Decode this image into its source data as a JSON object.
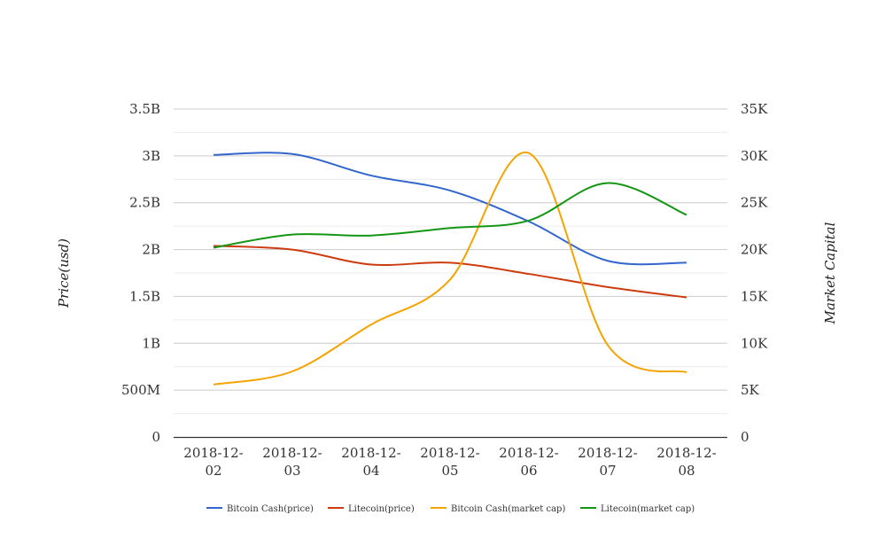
{
  "chart_data": {
    "type": "line",
    "title": "",
    "x": [
      "2018-12-02",
      "2018-12-03",
      "2018-12-04",
      "2018-12-05",
      "2018-12-06",
      "2018-12-07",
      "2018-12-08"
    ],
    "x_tick_lines": [
      [
        "2018-12-",
        "02"
      ],
      [
        "2018-12-",
        "03"
      ],
      [
        "2018-12-",
        "04"
      ],
      [
        "2018-12-",
        "05"
      ],
      [
        "2018-12-",
        "06"
      ],
      [
        "2018-12-",
        "07"
      ],
      [
        "2018-12-",
        "08"
      ]
    ],
    "ylabel": "Price(usd)",
    "y2label": "Market Capital",
    "ylim": [
      0,
      3500000000
    ],
    "y2lim": [
      0,
      35000
    ],
    "y_ticks": [
      {
        "value": 0,
        "label": "0"
      },
      {
        "value": 500000000,
        "label": "500M"
      },
      {
        "value": 1000000000,
        "label": "1B"
      },
      {
        "value": 1500000000,
        "label": "1.5B"
      },
      {
        "value": 2000000000,
        "label": "2B"
      },
      {
        "value": 2500000000,
        "label": "2.5B"
      },
      {
        "value": 3000000000,
        "label": "3B"
      },
      {
        "value": 3500000000,
        "label": "3.5B"
      }
    ],
    "y2_ticks": [
      {
        "value": 0,
        "label": "0"
      },
      {
        "value": 5000,
        "label": "5K"
      },
      {
        "value": 10000,
        "label": "10K"
      },
      {
        "value": 15000,
        "label": "15K"
      },
      {
        "value": 20000,
        "label": "20K"
      },
      {
        "value": 25000,
        "label": "25K"
      },
      {
        "value": 30000,
        "label": "30K"
      },
      {
        "value": 35000,
        "label": "35K"
      }
    ],
    "grid": true,
    "legend_position": "bottom",
    "series": [
      {
        "name": "Bitcoin Cash(price)",
        "axis": "left",
        "color": "#3366cc",
        "values": [
          3010000000,
          3020000000,
          2790000000,
          2630000000,
          2300000000,
          1880000000,
          1860000000
        ]
      },
      {
        "name": "Litecoin(price)",
        "axis": "left",
        "color": "#cc3c0f",
        "values": [
          2040000000,
          2000000000,
          1840000000,
          1860000000,
          1740000000,
          1600000000,
          1490000000
        ]
      },
      {
        "name": "Bitcoin Cash(market cap)",
        "axis": "right",
        "color": "#f5a300",
        "values": [
          5600,
          7000,
          12000,
          16800,
          30300,
          9800,
          6900
        ]
      },
      {
        "name": "Litecoin(market cap)",
        "axis": "right",
        "color": "#149614",
        "values": [
          20200,
          21600,
          21500,
          22300,
          23100,
          27100,
          23700
        ]
      }
    ]
  }
}
